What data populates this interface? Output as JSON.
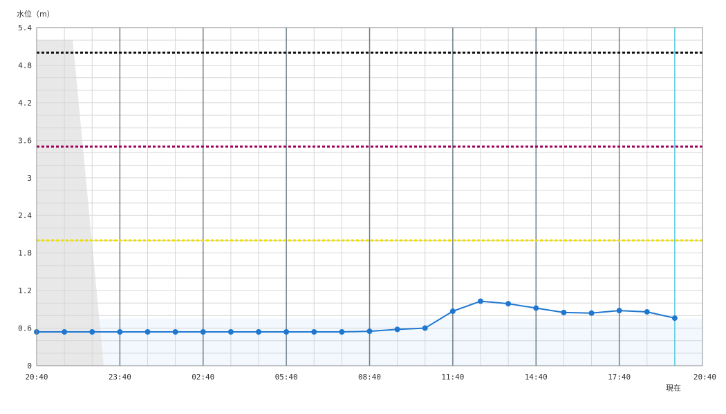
{
  "chart_data": {
    "type": "line",
    "ylabel": "水位（m）",
    "ylim": [
      0,
      5.4
    ],
    "y_ticks": [
      "0",
      "0.6",
      "1.2",
      "1.8",
      "2.4",
      "3",
      "3.6",
      "4.2",
      "4.8",
      "5.4"
    ],
    "x_range_minutes": [
      0,
      1440
    ],
    "x_tick_labels": [
      "20:40",
      "23:40",
      "02:40",
      "05:40",
      "08:40",
      "11:40",
      "14:40",
      "17:40",
      "20:40"
    ],
    "now_label": "現在",
    "now_minutes": 1380,
    "series": [
      {
        "color": "#1f77d0",
        "x_minutes": [
          0,
          60,
          120,
          180,
          240,
          300,
          360,
          420,
          480,
          540,
          600,
          660,
          720,
          780,
          840,
          900,
          960,
          1020,
          1080,
          1140,
          1200,
          1260,
          1320,
          1380
        ],
        "values": [
          0.54,
          0.54,
          0.54,
          0.54,
          0.54,
          0.54,
          0.54,
          0.54,
          0.54,
          0.54,
          0.54,
          0.54,
          0.55,
          0.58,
          0.6,
          0.87,
          1.03,
          0.99,
          0.92,
          0.85,
          0.84,
          0.88,
          0.86,
          0.76
        ]
      }
    ],
    "thresholds": [
      {
        "value": 5.0,
        "color": "#111111"
      },
      {
        "value": 3.5,
        "color": "#a0005a"
      },
      {
        "value": 2.0,
        "color": "#f0e000"
      }
    ],
    "colors": {
      "grid": "#d6d6d6",
      "major_grid": "#6e7f8a",
      "now_line": "#5bc8e0",
      "forecast_band": "#f2f8fd",
      "history_shade": "#e8e8e8"
    },
    "grid": true
  }
}
